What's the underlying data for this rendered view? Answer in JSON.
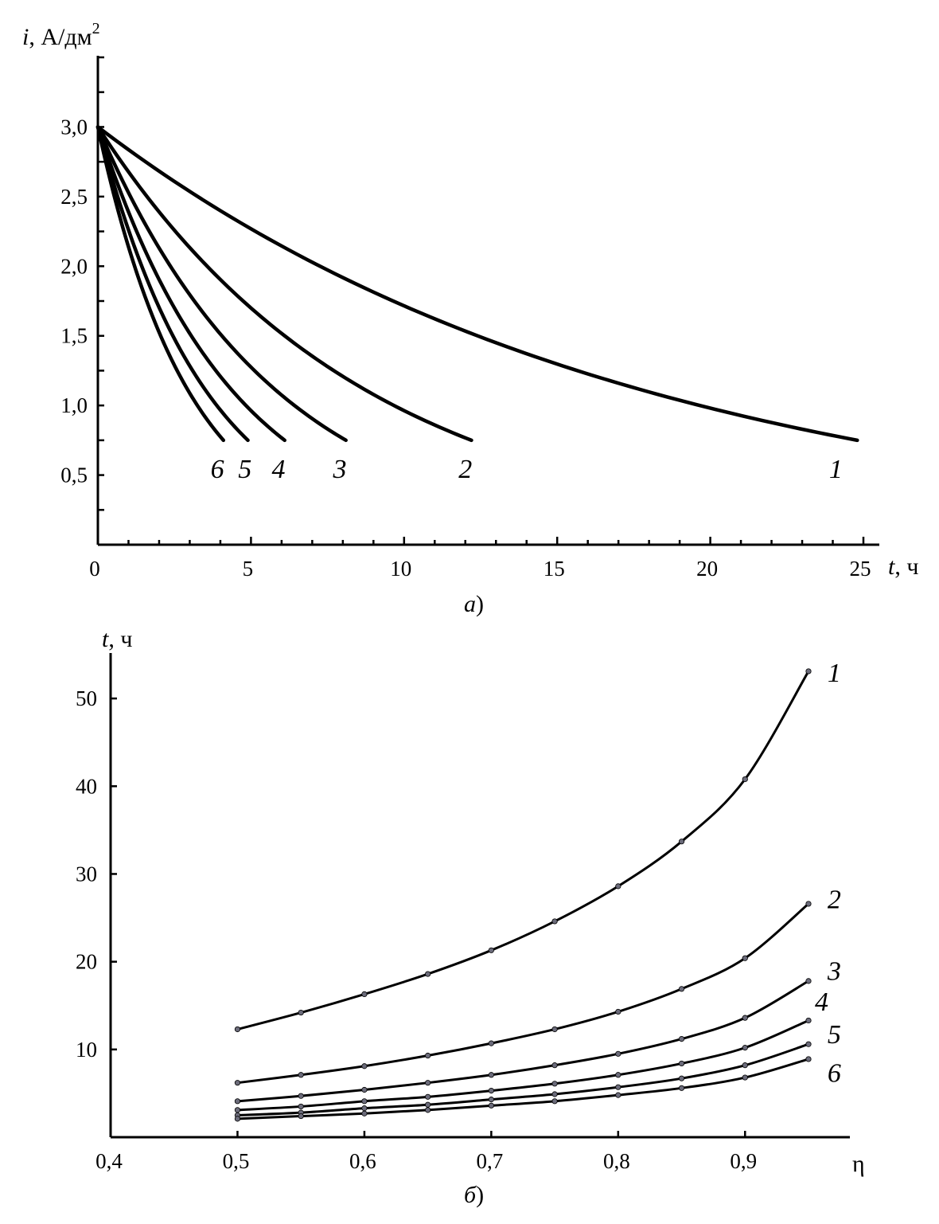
{
  "chart_data": [
    {
      "id": "a",
      "type": "line",
      "caption": {
        "letter": "a",
        "paren": ")"
      },
      "ylabel": {
        "var": "i",
        "unit": ", А/дм",
        "sup": "2"
      },
      "xlabel": {
        "var": "t",
        "unit": ", ч"
      },
      "xlim": [
        0,
        25
      ],
      "ylim": [
        0,
        3.5
      ],
      "xticks": [
        0,
        5,
        10,
        15,
        20,
        25
      ],
      "xtick_labels": [
        "0",
        "5",
        "10",
        "15",
        "20",
        "25"
      ],
      "xminor": 1,
      "yticks": [
        0.5,
        1.0,
        1.5,
        2.0,
        2.5,
        3.0
      ],
      "ytick_labels": [
        "0,5",
        "1,0",
        "1,5",
        "2,0",
        "2,5",
        "3,0"
      ],
      "yminor": 0.25,
      "grid": false,
      "series": [
        {
          "label": "1",
          "i0": 3.0,
          "i_end": 0.75,
          "t_end": 24.8,
          "label_pos": [
            24.1,
            0.48
          ]
        },
        {
          "label": "2",
          "i0": 3.0,
          "i_end": 0.75,
          "t_end": 12.2,
          "label_pos": [
            12.0,
            0.48
          ]
        },
        {
          "label": "3",
          "i0": 3.0,
          "i_end": 0.75,
          "t_end": 8.1,
          "label_pos": [
            7.9,
            0.48
          ]
        },
        {
          "label": "4",
          "i0": 3.0,
          "i_end": 0.75,
          "t_end": 6.1,
          "label_pos": [
            5.9,
            0.48
          ]
        },
        {
          "label": "5",
          "i0": 3.0,
          "i_end": 0.75,
          "t_end": 4.9,
          "label_pos": [
            4.8,
            0.48
          ]
        },
        {
          "label": "6",
          "i0": 3.0,
          "i_end": 0.75,
          "t_end": 4.1,
          "label_pos": [
            3.9,
            0.48
          ]
        }
      ]
    },
    {
      "id": "b",
      "type": "line",
      "caption": {
        "letter": "б",
        "paren": ")"
      },
      "ylabel": {
        "var": "t",
        "unit": ", ч"
      },
      "xlabel": {
        "var": "η",
        "unit": ""
      },
      "xlim": [
        0.4,
        1.0
      ],
      "ylim": [
        0,
        55
      ],
      "xticks": [
        0.4,
        0.5,
        0.6,
        0.7,
        0.8,
        0.9
      ],
      "xtick_labels": [
        "0,4",
        "0,5",
        "0,6",
        "0,7",
        "0,8",
        "0,9"
      ],
      "yticks": [
        10,
        20,
        30,
        40,
        50
      ],
      "ytick_labels": [
        "10",
        "20",
        "30",
        "40",
        "50"
      ],
      "grid": false,
      "x": [
        0.5,
        0.55,
        0.6,
        0.65,
        0.7,
        0.75,
        0.8,
        0.85,
        0.9,
        0.95
      ],
      "series": [
        {
          "label": "1",
          "values": [
            12.3,
            14.2,
            16.3,
            18.6,
            21.3,
            24.6,
            28.6,
            33.7,
            40.8,
            53.1
          ],
          "label_pos": [
            0.965,
            53.0
          ]
        },
        {
          "label": "2",
          "values": [
            6.2,
            7.1,
            8.1,
            9.3,
            10.7,
            12.3,
            14.3,
            16.9,
            20.4,
            26.6
          ],
          "label_pos": [
            0.965,
            27.2
          ]
        },
        {
          "label": "3",
          "values": [
            4.1,
            4.7,
            5.4,
            6.2,
            7.1,
            8.2,
            9.5,
            11.2,
            13.6,
            17.8
          ],
          "label_pos": [
            0.965,
            19.0
          ]
        },
        {
          "label": "4",
          "values": [
            3.1,
            3.5,
            4.1,
            4.6,
            5.3,
            6.1,
            7.1,
            8.4,
            10.2,
            13.3
          ],
          "label_pos": [
            0.955,
            15.5
          ]
        },
        {
          "label": "5",
          "values": [
            2.5,
            2.8,
            3.3,
            3.7,
            4.3,
            4.9,
            5.7,
            6.7,
            8.2,
            10.6
          ],
          "label_pos": [
            0.965,
            11.8
          ]
        },
        {
          "label": "6",
          "values": [
            2.1,
            2.4,
            2.7,
            3.1,
            3.6,
            4.1,
            4.8,
            5.6,
            6.8,
            8.9
          ],
          "label_pos": [
            0.965,
            7.4
          ]
        }
      ]
    }
  ]
}
